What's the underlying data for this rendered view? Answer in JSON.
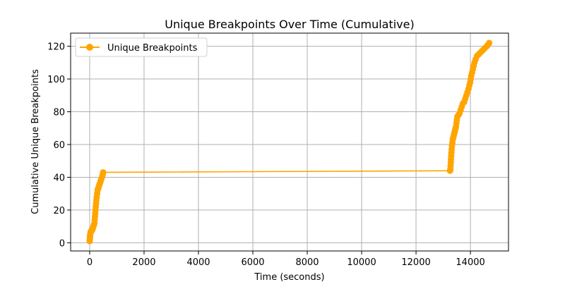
{
  "chart_data": {
    "type": "line",
    "title": "Unique Breakpoints Over Time (Cumulative)",
    "xlabel": "Time (seconds)",
    "ylabel": "Cumulative Unique Breakpoints",
    "xlim": [
      -700,
      15400
    ],
    "ylim": [
      -5,
      128
    ],
    "x_ticks": [
      0,
      2000,
      4000,
      6000,
      8000,
      10000,
      12000,
      14000
    ],
    "y_ticks": [
      0,
      20,
      40,
      60,
      80,
      100,
      120
    ],
    "grid": true,
    "legend_position": "top-left",
    "series": [
      {
        "name": "Unique Breakpoints",
        "color": "#ffa500",
        "marker": "circle",
        "points": [
          [
            0,
            1
          ],
          [
            5,
            2
          ],
          [
            10,
            3
          ],
          [
            15,
            4
          ],
          [
            20,
            5
          ],
          [
            30,
            6
          ],
          [
            45,
            7
          ],
          [
            60,
            7
          ],
          [
            80,
            8
          ],
          [
            100,
            8
          ],
          [
            120,
            9
          ],
          [
            140,
            10
          ],
          [
            160,
            11
          ],
          [
            175,
            12
          ],
          [
            185,
            14
          ],
          [
            195,
            16
          ],
          [
            205,
            18
          ],
          [
            215,
            20
          ],
          [
            225,
            22
          ],
          [
            235,
            24
          ],
          [
            245,
            26
          ],
          [
            260,
            28
          ],
          [
            275,
            30
          ],
          [
            290,
            32
          ],
          [
            310,
            33
          ],
          [
            330,
            34
          ],
          [
            350,
            35
          ],
          [
            370,
            36
          ],
          [
            390,
            37
          ],
          [
            410,
            38
          ],
          [
            430,
            39
          ],
          [
            450,
            40
          ],
          [
            470,
            41
          ],
          [
            485,
            42
          ],
          [
            495,
            43
          ],
          [
            13250,
            44
          ],
          [
            13262,
            45
          ],
          [
            13270,
            47
          ],
          [
            13278,
            49
          ],
          [
            13285,
            51
          ],
          [
            13292,
            53
          ],
          [
            13300,
            55
          ],
          [
            13310,
            57
          ],
          [
            13320,
            59
          ],
          [
            13335,
            61
          ],
          [
            13350,
            63
          ],
          [
            13365,
            64
          ],
          [
            13380,
            65
          ],
          [
            13395,
            66
          ],
          [
            13410,
            67
          ],
          [
            13425,
            68
          ],
          [
            13440,
            69
          ],
          [
            13455,
            70
          ],
          [
            13470,
            71
          ],
          [
            13485,
            73
          ],
          [
            13500,
            75
          ],
          [
            13520,
            77
          ],
          [
            13560,
            78
          ],
          [
            13600,
            79
          ],
          [
            13640,
            81
          ],
          [
            13680,
            83
          ],
          [
            13720,
            85
          ],
          [
            13770,
            86
          ],
          [
            13810,
            88
          ],
          [
            13850,
            90
          ],
          [
            13890,
            92
          ],
          [
            13930,
            94
          ],
          [
            13960,
            96
          ],
          [
            13990,
            98
          ],
          [
            14010,
            100
          ],
          [
            14030,
            102
          ],
          [
            14060,
            104
          ],
          [
            14090,
            106
          ],
          [
            14120,
            108
          ],
          [
            14150,
            110
          ],
          [
            14190,
            112
          ],
          [
            14240,
            114
          ],
          [
            14300,
            115
          ],
          [
            14360,
            116
          ],
          [
            14420,
            117
          ],
          [
            14480,
            118
          ],
          [
            14540,
            119
          ],
          [
            14600,
            120
          ],
          [
            14650,
            121
          ],
          [
            14690,
            122
          ]
        ]
      }
    ]
  }
}
